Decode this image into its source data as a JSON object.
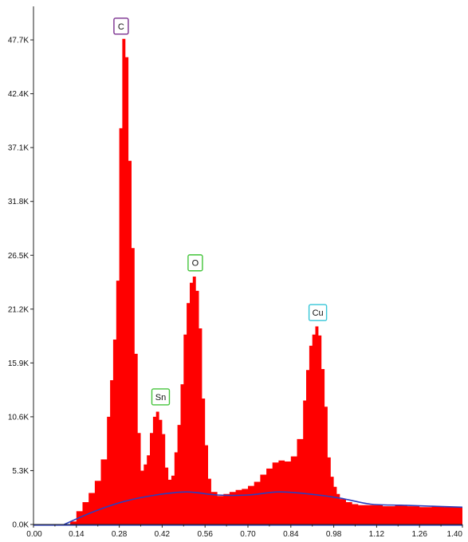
{
  "chart_data": {
    "type": "area",
    "title": "",
    "xlabel": "",
    "ylabel": "",
    "xlim": [
      0.0,
      1.4
    ],
    "ylim": [
      0,
      51000
    ],
    "grid": false,
    "legend": "none",
    "x_ticks": [
      "0.00",
      "0.14",
      "0.28",
      "0.42",
      "0.56",
      "0.70",
      "0.84",
      "0.98",
      "1.12",
      "1.26",
      "1.40"
    ],
    "x_tick_values": [
      0.0,
      0.14,
      0.28,
      0.42,
      0.56,
      0.7,
      0.84,
      0.98,
      1.12,
      1.26,
      1.4
    ],
    "y_ticks": [
      "0.0K",
      "5.3K",
      "10.6K",
      "15.9K",
      "21.2K",
      "26.5K",
      "31.8K",
      "37.1K",
      "42.4K",
      "47.7K"
    ],
    "y_tick_values": [
      0,
      5300,
      10600,
      15900,
      21200,
      26500,
      31800,
      37100,
      42400,
      47700
    ],
    "spectrum_color": "#ff0000",
    "background_color": "#2b3fbf",
    "spectrum": {
      "x": [
        0.0,
        0.1,
        0.12,
        0.14,
        0.16,
        0.18,
        0.2,
        0.22,
        0.24,
        0.25,
        0.26,
        0.27,
        0.28,
        0.29,
        0.3,
        0.31,
        0.32,
        0.33,
        0.34,
        0.35,
        0.36,
        0.37,
        0.38,
        0.39,
        0.4,
        0.41,
        0.42,
        0.43,
        0.44,
        0.45,
        0.46,
        0.47,
        0.48,
        0.49,
        0.5,
        0.51,
        0.52,
        0.53,
        0.54,
        0.55,
        0.56,
        0.57,
        0.58,
        0.6,
        0.62,
        0.64,
        0.66,
        0.68,
        0.7,
        0.72,
        0.74,
        0.76,
        0.78,
        0.8,
        0.82,
        0.84,
        0.86,
        0.88,
        0.89,
        0.9,
        0.91,
        0.92,
        0.93,
        0.94,
        0.95,
        0.96,
        0.97,
        0.98,
        0.99,
        1.0,
        1.02,
        1.04,
        1.06,
        1.1,
        1.14,
        1.18,
        1.22,
        1.26,
        1.3,
        1.34,
        1.4
      ],
      "y": [
        0,
        0,
        300,
        1300,
        2200,
        3100,
        4300,
        6400,
        10600,
        14200,
        18200,
        24000,
        39000,
        47800,
        46000,
        35800,
        27200,
        16800,
        9000,
        5300,
        5900,
        6800,
        9000,
        10600,
        11100,
        10300,
        8900,
        5600,
        4400,
        4800,
        7100,
        9800,
        13800,
        18700,
        21800,
        23800,
        24400,
        23000,
        19300,
        12400,
        7800,
        4500,
        3200,
        2800,
        3000,
        3200,
        3400,
        3500,
        3800,
        4200,
        4900,
        5500,
        6100,
        6300,
        6200,
        6700,
        8400,
        12200,
        15200,
        17600,
        18700,
        19500,
        18600,
        15300,
        11600,
        6600,
        4700,
        3700,
        3000,
        2500,
        2200,
        2000,
        1900,
        1900,
        1800,
        1900,
        1800,
        1700,
        1800,
        1700,
        1600
      ]
    },
    "background": {
      "x": [
        0.1,
        0.2,
        0.3,
        0.4,
        0.5,
        0.6,
        0.7,
        0.8,
        0.9,
        1.0,
        1.1,
        1.2,
        1.3,
        1.4
      ],
      "y": [
        0,
        1300,
        2300,
        2900,
        3200,
        2900,
        2900,
        3200,
        3000,
        2600,
        2000,
        1900,
        1800,
        1700
      ]
    },
    "peak_labels": [
      {
        "label": "C",
        "x": 0.286,
        "y": 47800,
        "color": "#7a2f8f"
      },
      {
        "label": "Sn",
        "x": 0.415,
        "y": 11300,
        "color": "#43c43a"
      },
      {
        "label": "O",
        "x": 0.528,
        "y": 24500,
        "color": "#43c43a"
      },
      {
        "label": "Cu",
        "x": 0.928,
        "y": 19600,
        "color": "#36c6d8"
      }
    ]
  }
}
